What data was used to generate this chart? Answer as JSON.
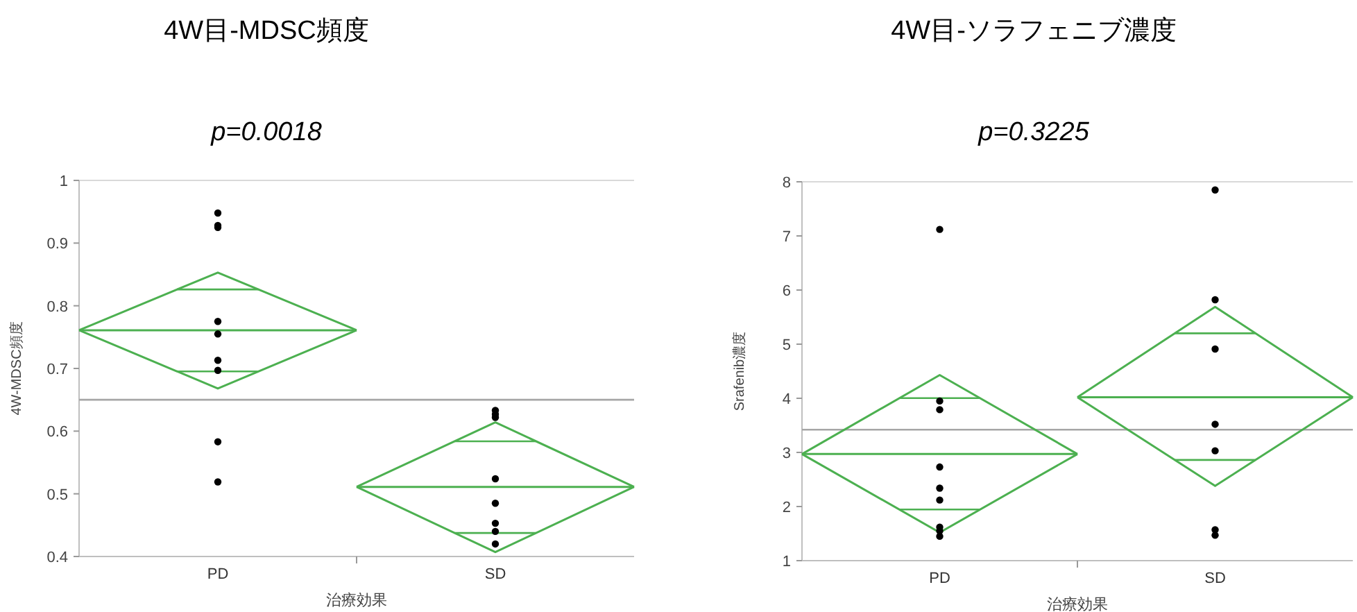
{
  "chart_data": [
    {
      "type": "scatter",
      "title": "4W目-MDSC頻度",
      "subtitle": "p=0.0018",
      "xlabel": "治療効果",
      "ylabel": "4W-MDSC頻度",
      "categories": [
        null,
        "PD",
        null,
        "SD",
        null
      ],
      "ylim": [
        0.4,
        1
      ],
      "yticks": [
        0.4,
        0.5,
        0.6,
        0.7,
        0.8,
        0.9,
        1
      ],
      "marker": "circle",
      "ref_lines": [
        {
          "axis": "y",
          "value": 0.65,
          "color": "#a6a6a6"
        }
      ],
      "series": [
        {
          "type": "scatter",
          "color": "#000000",
          "x": [
            "PD",
            "PD",
            "PD",
            "PD",
            "PD",
            "PD",
            "PD",
            "PD",
            "PD",
            "SD",
            "SD",
            "SD",
            "SD",
            "SD",
            "SD",
            "SD",
            "SD"
          ],
          "values": [
            0.948,
            0.928,
            0.925,
            0.775,
            0.755,
            0.713,
            0.697,
            0.583,
            0.519,
            0.633,
            0.627,
            0.622,
            0.524,
            0.485,
            0.453,
            0.44,
            0.42
          ]
        },
        {
          "type": "line",
          "marker": "none",
          "color": "#4cb050",
          "values": [
            0.761,
            0.853,
            0.761,
            null,
            null
          ]
        },
        {
          "type": "line",
          "marker": "none",
          "color": "#4cb050",
          "values": [
            0.761,
            0.761,
            0.761,
            null,
            null
          ]
        },
        {
          "type": "line",
          "marker": "none",
          "color": "#4cb050",
          "values": [
            0.761,
            0.668,
            0.761,
            null,
            null
          ]
        },
        {
          "type": "line",
          "marker": "none",
          "color": "#4cb050",
          "values": [
            null,
            null,
            0.511,
            0.614,
            0.511
          ]
        },
        {
          "type": "line",
          "marker": "none",
          "color": "#4cb050",
          "values": [
            null,
            null,
            0.511,
            0.511,
            0.511
          ]
        },
        {
          "type": "line",
          "marker": "none",
          "color": "#4cb050",
          "values": [
            null,
            null,
            0.511,
            0.407,
            0.511
          ]
        }
      ]
    },
    {
      "type": "scatter",
      "title": "4W目-ソラフェニブ濃度",
      "subtitle": "p=0.3225",
      "xlabel": "治療効果",
      "ylabel": "Srafenib濃度",
      "categories": [
        null,
        "PD",
        null,
        "SD",
        null
      ],
      "ylim": [
        1,
        8
      ],
      "yticks": [
        1,
        2,
        3,
        4,
        5,
        6,
        7,
        8
      ],
      "marker": "circle",
      "ref_lines": [
        {
          "axis": "y",
          "value": 3.42,
          "color": "#a6a6a6"
        }
      ],
      "series": [
        {
          "type": "scatter",
          "color": "#000000",
          "x": [
            "PD",
            "PD",
            "PD",
            "PD",
            "PD",
            "PD",
            "PD",
            "PD",
            "PD",
            "SD",
            "SD",
            "SD",
            "SD",
            "SD",
            "SD",
            "SD"
          ],
          "values": [
            7.12,
            3.95,
            3.79,
            2.73,
            2.34,
            2.12,
            1.62,
            1.55,
            1.45,
            7.85,
            5.82,
            4.91,
            3.52,
            3.03,
            1.57,
            1.47
          ]
        },
        {
          "type": "line",
          "marker": "none",
          "color": "#4cb050",
          "values": [
            2.97,
            4.43,
            2.97,
            null,
            null
          ]
        },
        {
          "type": "line",
          "marker": "none",
          "color": "#4cb050",
          "values": [
            2.97,
            2.97,
            2.97,
            null,
            null
          ]
        },
        {
          "type": "line",
          "marker": "none",
          "color": "#4cb050",
          "values": [
            2.97,
            1.52,
            2.97,
            null,
            null
          ]
        },
        {
          "type": "line",
          "marker": "none",
          "color": "#4cb050",
          "values": [
            null,
            null,
            4.02,
            5.69,
            4.02
          ]
        },
        {
          "type": "line",
          "marker": "none",
          "color": "#4cb050",
          "values": [
            null,
            null,
            4.02,
            4.02,
            4.02
          ]
        },
        {
          "type": "line",
          "marker": "none",
          "color": "#4cb050",
          "values": [
            null,
            null,
            4.02,
            2.38,
            4.02
          ]
        }
      ]
    }
  ]
}
